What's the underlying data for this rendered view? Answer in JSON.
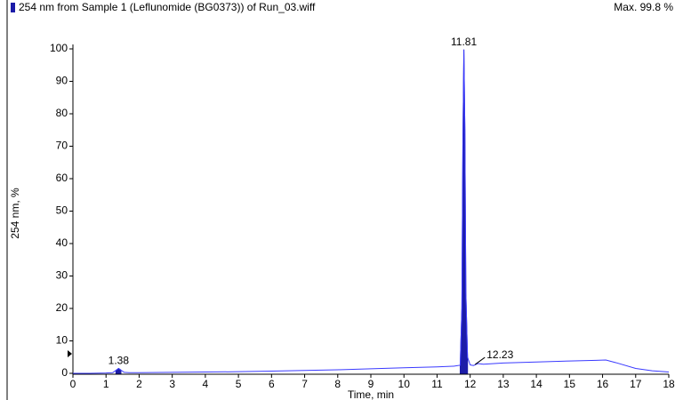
{
  "chart_data": {
    "type": "line",
    "title": "254 nm from Sample 1 (Leflunomide (BG0373)) of Run_03.wiff",
    "max_label": "Max. 99.8 %",
    "x_label": "Time, min",
    "y_label": "254 nm, %",
    "color": "#3a3aff",
    "peak_color": "#1c1ca8",
    "xlim": [
      0,
      18
    ],
    "ylim": [
      0,
      100
    ],
    "xticks": [
      0,
      1,
      2,
      3,
      4,
      5,
      6,
      7,
      8,
      9,
      10,
      11,
      12,
      13,
      14,
      15,
      16,
      17,
      18
    ],
    "yticks": [
      0,
      10,
      20,
      30,
      40,
      50,
      60,
      70,
      80,
      90,
      100
    ],
    "series": [
      {
        "name": "254 nm",
        "x": [
          0,
          0.5,
          1.0,
          1.2,
          1.3,
          1.38,
          1.45,
          1.55,
          1.7,
          2,
          3,
          4,
          5,
          6,
          7,
          8,
          9,
          10,
          11,
          11.5,
          11.7,
          11.75,
          11.78,
          11.81,
          11.84,
          11.87,
          11.92,
          12.0,
          12.1,
          12.23,
          12.4,
          13,
          14,
          15,
          15.8,
          16.1,
          16.4,
          17,
          17.5,
          18
        ],
        "values": [
          0,
          0,
          0.1,
          0.2,
          0.9,
          1.5,
          1.0,
          0.3,
          0.2,
          0.2,
          0.3,
          0.4,
          0.5,
          0.7,
          0.9,
          1.1,
          1.4,
          1.7,
          2.0,
          2.2,
          2.5,
          20,
          70,
          99.8,
          75,
          25,
          5,
          2.6,
          2.4,
          3.0,
          2.8,
          3.2,
          3.5,
          3.8,
          4.0,
          4.1,
          3.3,
          1.5,
          0.8,
          0.4
        ]
      }
    ],
    "peaks": [
      {
        "x": 1.38,
        "y": 1.5
      },
      {
        "x": 11.81,
        "y": 99.8
      },
      {
        "x": 12.23,
        "y": 3.0
      }
    ]
  }
}
